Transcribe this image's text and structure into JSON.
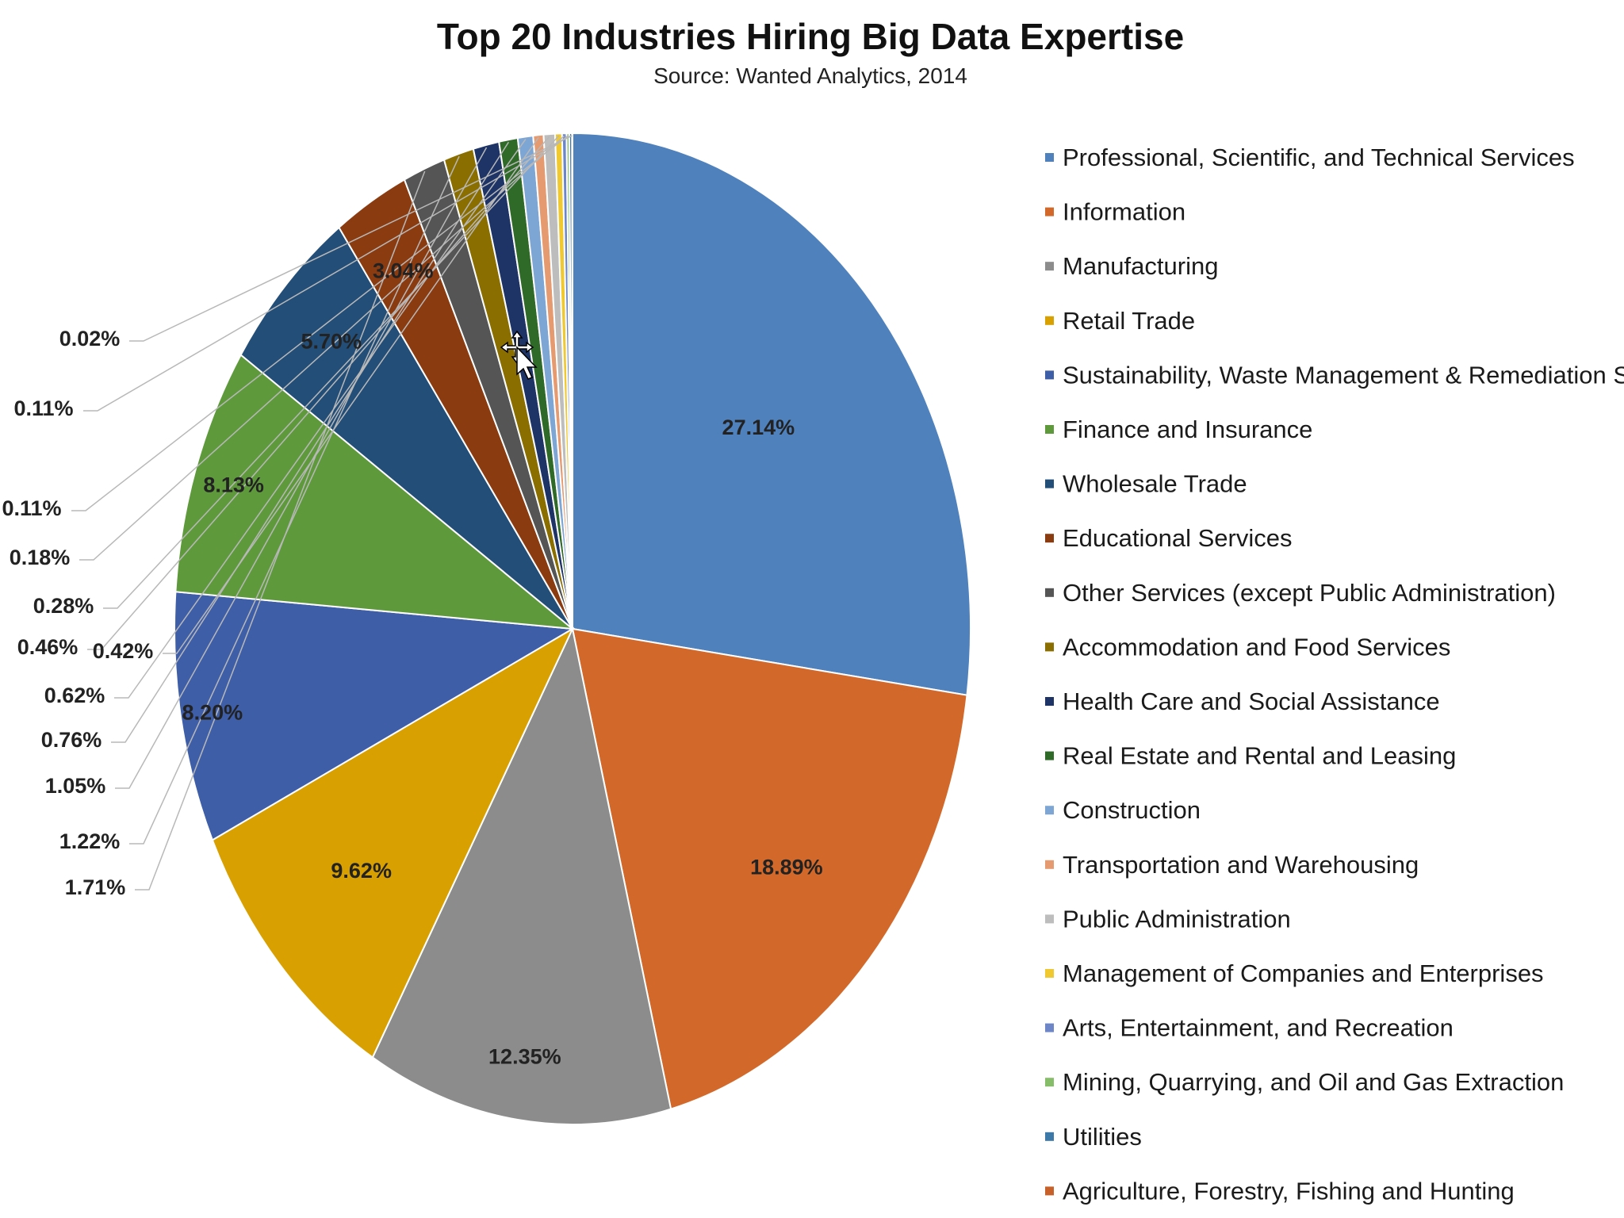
{
  "chart_data": {
    "type": "pie",
    "title": "Top 20 Industries Hiring Big Data Expertise",
    "subtitle": "Source: Wanted Analytics, 2014",
    "legend_position": "right",
    "series": [
      {
        "name": "Professional, Scientific, and Technical Services",
        "value": 27.14,
        "label": "27.14%",
        "color": "#4f81bd"
      },
      {
        "name": "Information",
        "value": 18.89,
        "label": "18.89%",
        "color": "#d2692a"
      },
      {
        "name": "Manufacturing",
        "value": 12.35,
        "label": "12.35%",
        "color": "#8c8c8c"
      },
      {
        "name": "Retail Trade",
        "value": 9.62,
        "label": "9.62%",
        "color": "#d8a000"
      },
      {
        "name": "Sustainability, Waste Management & Remediation Svcs",
        "value": 8.2,
        "label": "8.20%",
        "color": "#3e5ea8"
      },
      {
        "name": "Finance and Insurance",
        "value": 8.13,
        "label": "8.13%",
        "color": "#5e9a3c"
      },
      {
        "name": "Wholesale Trade",
        "value": 5.7,
        "label": "5.70%",
        "color": "#234e78"
      },
      {
        "name": "Educational Services",
        "value": 3.04,
        "label": "3.04%",
        "color": "#8b3b10"
      },
      {
        "name": "Other Services (except Public Administration)",
        "value": 1.71,
        "label": "1.71%",
        "color": "#555555"
      },
      {
        "name": "Accommodation and Food Services",
        "value": 1.22,
        "label": "1.22%",
        "color": "#8a6e00"
      },
      {
        "name": "Health Care and Social Assistance",
        "value": 1.05,
        "label": "1.05%",
        "color": "#1e3466"
      },
      {
        "name": "Real Estate and Rental and Leasing",
        "value": 0.76,
        "label": "0.76%",
        "color": "#2f6a28"
      },
      {
        "name": "Construction",
        "value": 0.62,
        "label": "0.62%",
        "color": "#7ea6d4"
      },
      {
        "name": "Transportation and Warehousing",
        "value": 0.42,
        "label": "0.42%",
        "color": "#e69a70"
      },
      {
        "name": "Public Administration",
        "value": 0.46,
        "label": "0.46%",
        "color": "#bdbdbd"
      },
      {
        "name": "Management of Companies and Enterprises",
        "value": 0.28,
        "label": "0.28%",
        "color": "#f0c830"
      },
      {
        "name": "Arts, Entertainment, and Recreation",
        "value": 0.18,
        "label": "0.18%",
        "color": "#6c86c8"
      },
      {
        "name": "Mining, Quarrying, and Oil and Gas Extraction",
        "value": 0.11,
        "label": "0.11%",
        "color": "#86bd68"
      },
      {
        "name": "Utilities",
        "value": 0.11,
        "label": "0.11%",
        "color": "#3c78a8"
      },
      {
        "name": "Agriculture, Forestry, Fishing and Hunting",
        "value": 0.02,
        "label": "0.02%",
        "color": "#c8602a"
      }
    ]
  }
}
